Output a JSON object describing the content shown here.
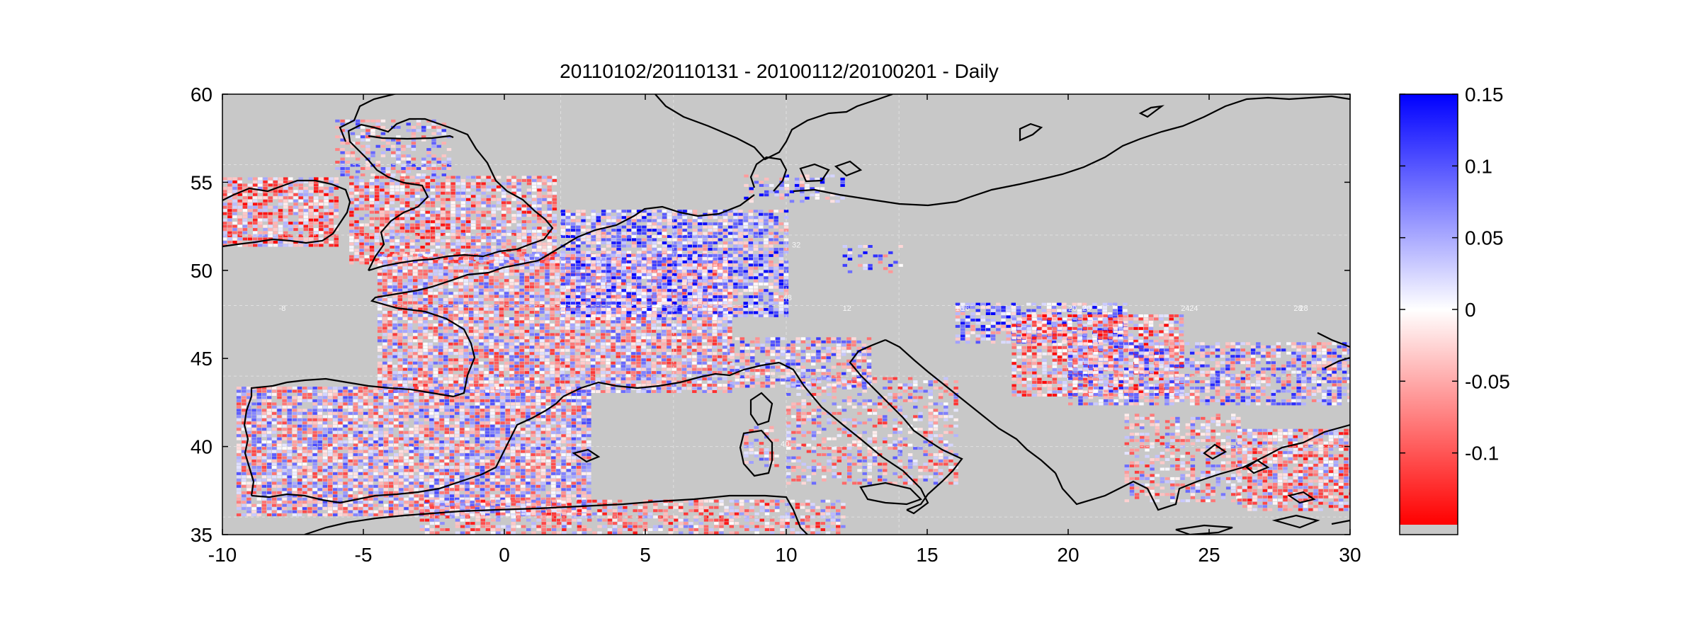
{
  "title": "20110102/20110131 - 20100112/20100201 - Daily",
  "map": {
    "lon_range": [
      -10,
      30
    ],
    "lat_range": [
      35,
      60
    ],
    "x_ticks": [
      "-10",
      "-5",
      "0",
      "5",
      "10",
      "15",
      "20",
      "25",
      "30"
    ],
    "y_ticks": [
      "60",
      "55",
      "50",
      "45",
      "40",
      "35"
    ],
    "background_color": "#c8c8c8",
    "coastline_color": "#000000",
    "grid_line_labels": [
      "-8",
      "16",
      "20",
      "24",
      "28",
      "32",
      "-48",
      "12",
      "16",
      "20",
      "24",
      "28",
      "40"
    ]
  },
  "colorbar": {
    "min": -0.15,
    "max": 0.15,
    "tick_labels": [
      "0.15",
      "0.1",
      "0.05",
      "0",
      "-0.05",
      "-0.1"
    ],
    "tick_values": [
      0.15,
      0.1,
      0.05,
      0,
      -0.05,
      -0.1
    ],
    "colors": {
      "positive": "#0000ff",
      "zero": "#ffffff",
      "negative": "#ff0000",
      "missing": "#c8c8c8"
    }
  }
}
